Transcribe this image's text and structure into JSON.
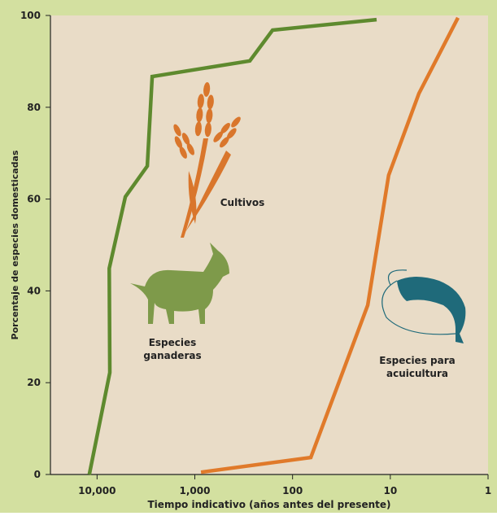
{
  "chart_data": {
    "type": "line",
    "x_label": "Tiempo indicativo (años antes del presente)",
    "y_label": "Porcentaje de especies domesticadas",
    "log_x": true,
    "xlim": [
      30000,
      1
    ],
    "ylim": [
      0,
      100
    ],
    "xticks": [
      {
        "value": 10000,
        "label": "10,000"
      },
      {
        "value": 1000,
        "label": "1,000"
      },
      100,
      10,
      1
    ],
    "yticks": [
      0,
      20,
      40,
      60,
      80,
      100
    ],
    "series": [
      {
        "name": "Cultivos",
        "color": "#5e8a2e",
        "x": [
          12000,
          7400,
          7500,
          5140,
          3060,
          2730,
          274,
          160,
          13.8
        ],
        "values": [
          0,
          22.2,
          44.9,
          60.5,
          67.2,
          86.7,
          90.1,
          96.8,
          99.1
        ]
      },
      {
        "name": "Especies para acuicultura",
        "color": "#e07a2a",
        "x": [
          865,
          65,
          17,
          10.4,
          5.1,
          2.03
        ],
        "values": [
          0.5,
          3.7,
          36.9,
          65.2,
          83,
          99.5
        ]
      }
    ],
    "annotations": [
      "Especies",
      "ganaderas"
    ]
  }
}
